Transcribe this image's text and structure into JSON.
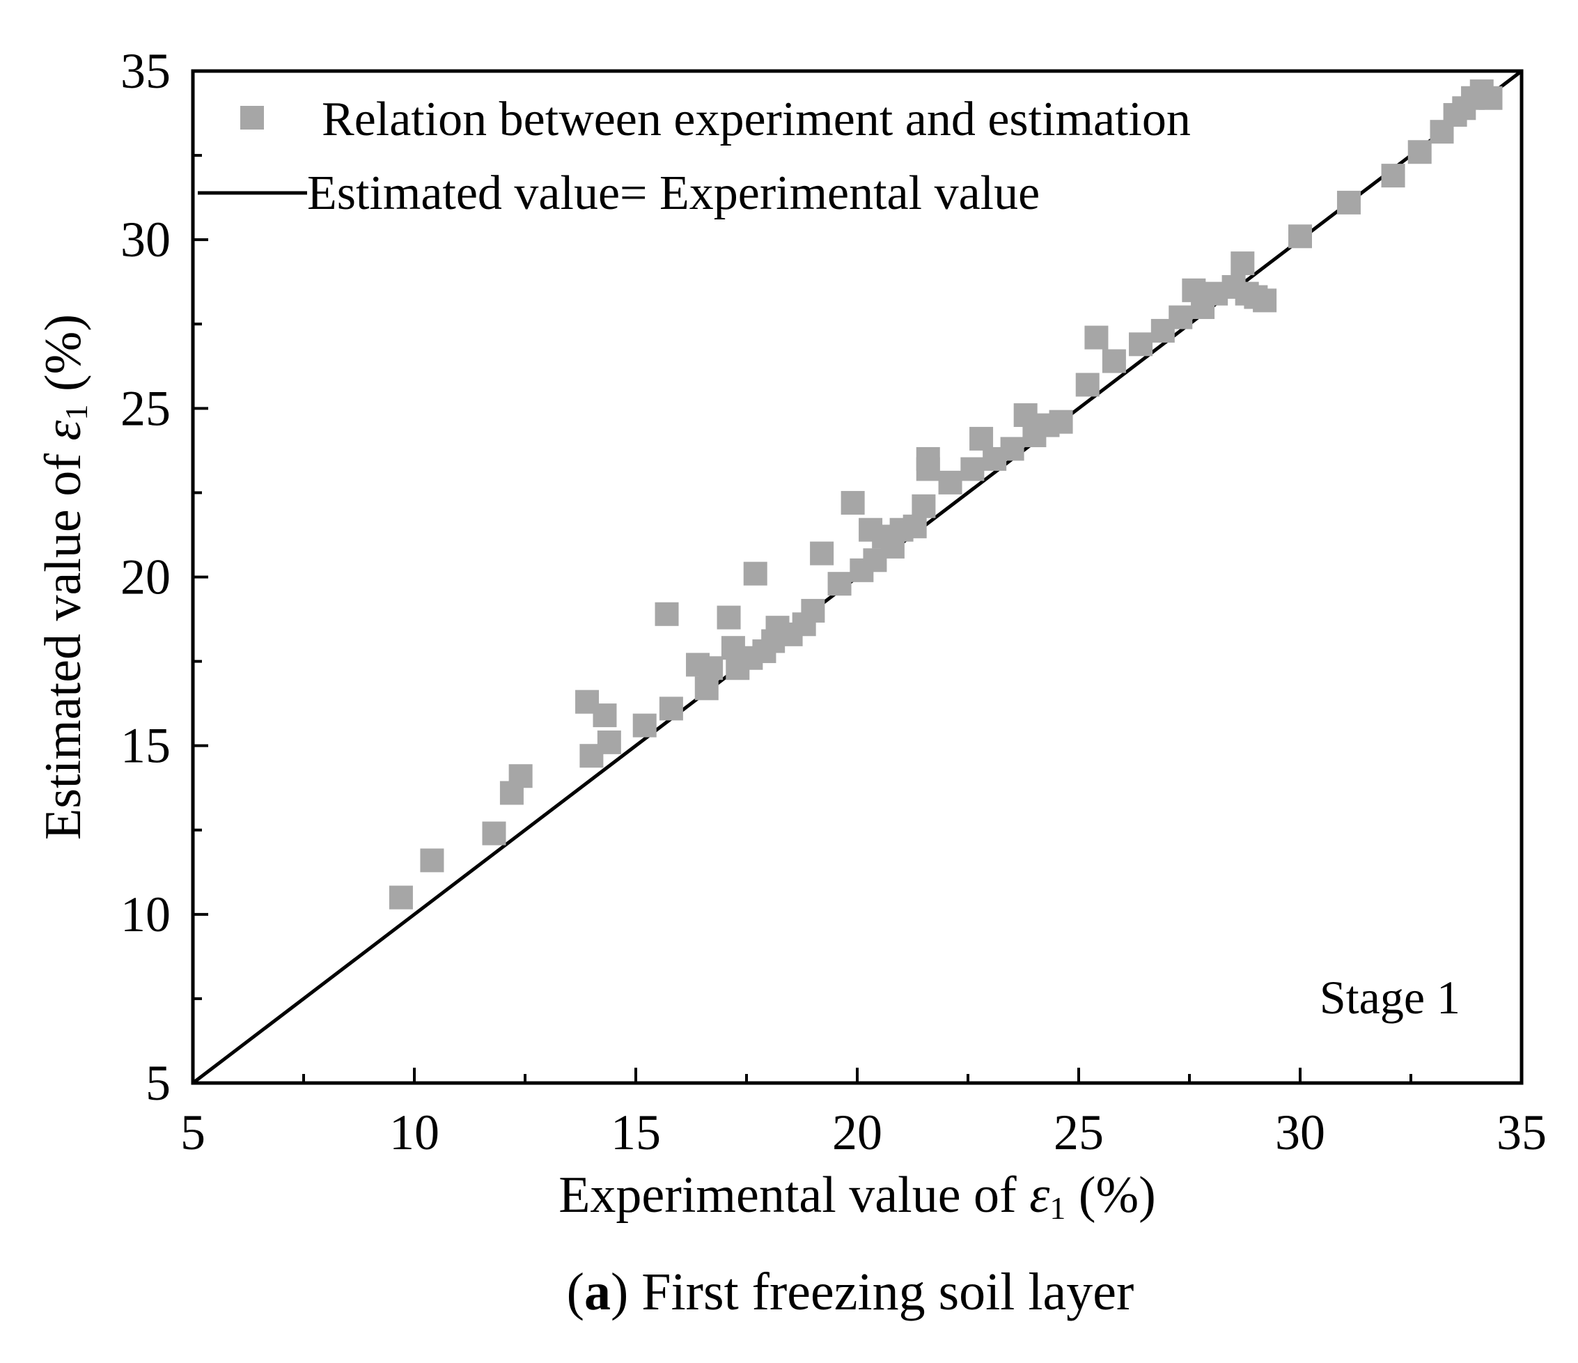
{
  "chart_data": {
    "type": "scatter",
    "title": "",
    "xlabel_prefix": "Experimental value of ",
    "ylabel_prefix": "Estimated value of ",
    "symbol": "ε",
    "subscript": "1",
    "unit": " (%)",
    "xlim": [
      5,
      35
    ],
    "ylim": [
      5,
      35
    ],
    "x_ticks": [
      5,
      10,
      15,
      20,
      25,
      30,
      35
    ],
    "y_ticks": [
      5,
      10,
      15,
      20,
      25,
      30,
      35
    ],
    "minor_step": 2.5,
    "annotation": "Stage 1",
    "series": [
      {
        "name": "Relation between experiment and estimation",
        "kind": "scatter",
        "color": "#a6a6a6",
        "points": [
          [
            9.7,
            10.5
          ],
          [
            10.4,
            11.6
          ],
          [
            11.8,
            12.4
          ],
          [
            12.2,
            13.6
          ],
          [
            12.4,
            14.1
          ],
          [
            13.9,
            16.3
          ],
          [
            14.0,
            14.7
          ],
          [
            14.3,
            15.9
          ],
          [
            14.4,
            15.1
          ],
          [
            15.2,
            15.6
          ],
          [
            15.7,
            18.9
          ],
          [
            15.8,
            16.1
          ],
          [
            16.4,
            17.4
          ],
          [
            16.6,
            16.7
          ],
          [
            16.7,
            17.3
          ],
          [
            17.1,
            18.8
          ],
          [
            17.2,
            17.9
          ],
          [
            17.3,
            17.3
          ],
          [
            17.6,
            17.6
          ],
          [
            17.7,
            20.1
          ],
          [
            17.9,
            17.8
          ],
          [
            18.1,
            18.1
          ],
          [
            18.2,
            18.5
          ],
          [
            18.5,
            18.3
          ],
          [
            18.8,
            18.6
          ],
          [
            19.0,
            19.0
          ],
          [
            19.2,
            20.7
          ],
          [
            19.6,
            19.8
          ],
          [
            19.9,
            22.2
          ],
          [
            20.1,
            20.2
          ],
          [
            20.3,
            21.4
          ],
          [
            20.4,
            20.5
          ],
          [
            20.6,
            21.2
          ],
          [
            20.8,
            20.9
          ],
          [
            21.0,
            21.4
          ],
          [
            21.3,
            21.5
          ],
          [
            21.5,
            22.1
          ],
          [
            21.6,
            23.2
          ],
          [
            21.6,
            23.5
          ],
          [
            22.1,
            22.8
          ],
          [
            22.6,
            23.2
          ],
          [
            22.8,
            24.1
          ],
          [
            23.1,
            23.5
          ],
          [
            23.5,
            23.8
          ],
          [
            23.8,
            24.8
          ],
          [
            24.0,
            24.2
          ],
          [
            24.3,
            24.5
          ],
          [
            24.6,
            24.6
          ],
          [
            25.2,
            25.7
          ],
          [
            25.4,
            27.1
          ],
          [
            25.8,
            26.4
          ],
          [
            26.4,
            26.9
          ],
          [
            26.9,
            27.3
          ],
          [
            27.3,
            27.7
          ],
          [
            27.6,
            28.5
          ],
          [
            27.8,
            28.0
          ],
          [
            28.1,
            28.4
          ],
          [
            28.5,
            28.6
          ],
          [
            28.7,
            29.3
          ],
          [
            28.8,
            28.4
          ],
          [
            29.0,
            28.3
          ],
          [
            29.2,
            28.2
          ],
          [
            30.0,
            30.1
          ],
          [
            31.1,
            31.1
          ],
          [
            32.1,
            31.9
          ],
          [
            32.7,
            32.6
          ],
          [
            33.2,
            33.2
          ],
          [
            33.5,
            33.7
          ],
          [
            33.7,
            33.9
          ],
          [
            33.9,
            34.2
          ],
          [
            34.1,
            34.4
          ],
          [
            34.3,
            34.2
          ]
        ]
      },
      {
        "name": "Estimated value= Experimental value",
        "kind": "line",
        "color": "#000000",
        "x": [
          5,
          35
        ],
        "y": [
          5,
          35
        ]
      }
    ],
    "caption_letter": "a",
    "caption_text": " First freezing soil layer"
  }
}
